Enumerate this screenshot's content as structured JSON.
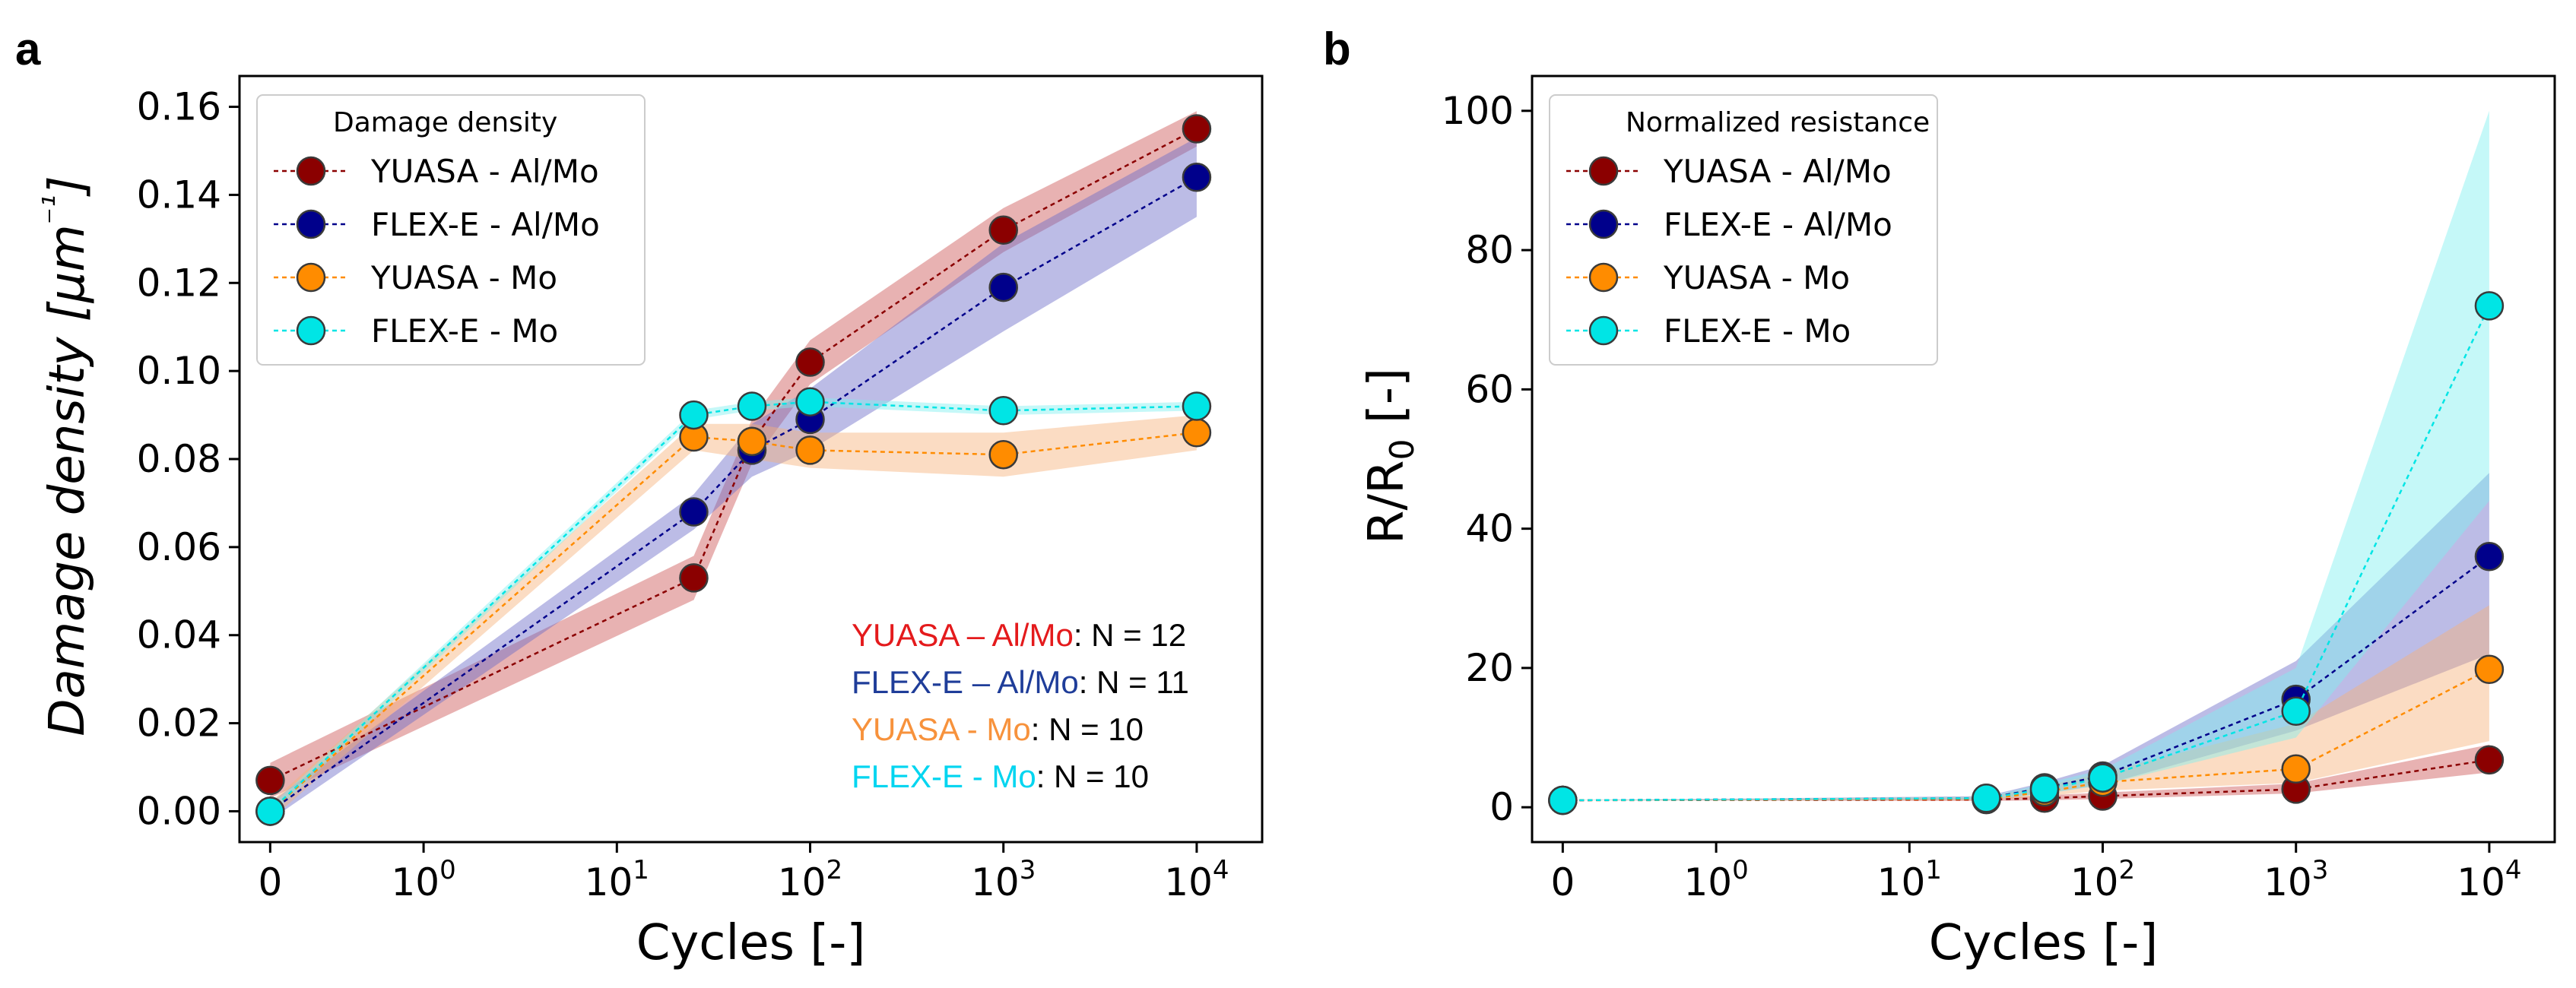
{
  "figure": {
    "panels": [
      {
        "label": "a",
        "legend_title": "Damage density",
        "annotations": [
          {
            "name": "YUASA – Al/Mo",
            "count": ": N = 12",
            "color": "#e41a1c"
          },
          {
            "name": "FLEX-E – Al/Mo",
            "count": ": N = 11",
            "color": "#1f3d99"
          },
          {
            "name": "YUASA - Mo",
            "count": ": N = 10",
            "color": "#f7923c"
          },
          {
            "name": "FLEX-E - Mo",
            "count": ": N = 10",
            "color": "#00d5f0"
          }
        ]
      },
      {
        "label": "b",
        "legend_title": "Normalized resistance",
        "annotations": []
      }
    ]
  },
  "chart_data": [
    {
      "type": "line",
      "title": "",
      "xlabel": "Cycles [-]",
      "ylabel_parts": [
        "Damage density [",
        "μm",
        "⁻¹",
        "]"
      ],
      "xscale": "symlog",
      "x": [
        0,
        25,
        50,
        100,
        1000,
        10000
      ],
      "xticks": [
        {
          "value": 0,
          "base": "0",
          "exp": ""
        },
        {
          "value": 1,
          "base": "10",
          "exp": "0"
        },
        {
          "value": 10,
          "base": "10",
          "exp": "1"
        },
        {
          "value": 100,
          "base": "10",
          "exp": "2"
        },
        {
          "value": 1000,
          "base": "10",
          "exp": "3"
        },
        {
          "value": 10000,
          "base": "10",
          "exp": "4"
        }
      ],
      "yticks": [
        "0.00",
        "0.02",
        "0.04",
        "0.06",
        "0.08",
        "0.10",
        "0.12",
        "0.14",
        "0.16"
      ],
      "ylim": [
        -0.007,
        0.167
      ],
      "legend_position": "upper-left",
      "series": [
        {
          "name": "YUASA - Al/Mo",
          "color": "#8b0000",
          "band": "#cc5555",
          "values": [
            0.007,
            0.053,
            0.084,
            0.102,
            0.132,
            0.155
          ],
          "lower": [
            0.003,
            0.048,
            0.079,
            0.097,
            0.127,
            0.151
          ],
          "upper": [
            0.011,
            0.058,
            0.089,
            0.107,
            0.137,
            0.159
          ]
        },
        {
          "name": "FLEX-E - Al/Mo",
          "color": "#00008b",
          "band": "#6a6ac8",
          "values": [
            0.0,
            0.068,
            0.082,
            0.089,
            0.119,
            0.144
          ],
          "lower": [
            -0.002,
            0.064,
            0.076,
            0.082,
            0.109,
            0.135
          ],
          "upper": [
            0.002,
            0.072,
            0.088,
            0.096,
            0.129,
            0.153
          ]
        },
        {
          "name": "YUASA - Mo",
          "color": "#ff8c00",
          "band": "#f7b27a",
          "values": [
            0.0,
            0.085,
            0.084,
            0.082,
            0.081,
            0.086
          ],
          "lower": [
            -0.002,
            0.082,
            0.08,
            0.078,
            0.076,
            0.082
          ],
          "upper": [
            0.002,
            0.088,
            0.088,
            0.086,
            0.086,
            0.09
          ]
        },
        {
          "name": "FLEX-E - Mo",
          "color": "#00e5e5",
          "band": "#7ff0f0",
          "values": [
            0.0,
            0.09,
            0.092,
            0.093,
            0.091,
            0.092
          ],
          "lower": [
            -0.001,
            0.089,
            0.091,
            0.092,
            0.09,
            0.091
          ],
          "upper": [
            0.001,
            0.091,
            0.093,
            0.094,
            0.092,
            0.093
          ]
        }
      ]
    },
    {
      "type": "line",
      "title": "",
      "xlabel": "Cycles [-]",
      "ylabel_parts": [
        "R/R",
        "0",
        " [-]"
      ],
      "xscale": "symlog",
      "x": [
        0,
        25,
        50,
        100,
        1000,
        10000
      ],
      "xticks": [
        {
          "value": 0,
          "base": "0",
          "exp": ""
        },
        {
          "value": 1,
          "base": "10",
          "exp": "0"
        },
        {
          "value": 10,
          "base": "10",
          "exp": "1"
        },
        {
          "value": 100,
          "base": "10",
          "exp": "2"
        },
        {
          "value": 1000,
          "base": "10",
          "exp": "3"
        },
        {
          "value": 10000,
          "base": "10",
          "exp": "4"
        }
      ],
      "yticks": [
        "0",
        "20",
        "40",
        "60",
        "80",
        "100"
      ],
      "ylim": [
        -5,
        105
      ],
      "legend_position": "upper-left",
      "series": [
        {
          "name": "YUASA - Al/Mo",
          "color": "#8b0000",
          "band": "#cc5555",
          "values": [
            1.0,
            1.1,
            1.3,
            1.6,
            2.6,
            6.8
          ],
          "lower": [
            1.0,
            0.9,
            1.0,
            1.2,
            2.0,
            5.0
          ],
          "upper": [
            1.0,
            1.3,
            1.7,
            2.1,
            3.4,
            9.0
          ]
        },
        {
          "name": "FLEX-E - Al/Mo",
          "color": "#00008b",
          "band": "#6a6ac8",
          "values": [
            1.0,
            1.3,
            2.8,
            4.5,
            15.5,
            36.0
          ],
          "lower": [
            1.0,
            1.1,
            2.0,
            3.2,
            11.0,
            22.0
          ],
          "upper": [
            1.0,
            1.6,
            3.6,
            6.0,
            21.0,
            48.0
          ]
        },
        {
          "name": "YUASA - Mo",
          "color": "#ff8c00",
          "band": "#f7b27a",
          "values": [
            1.0,
            1.2,
            2.2,
            3.6,
            5.5,
            19.8
          ],
          "lower": [
            1.0,
            1.0,
            1.6,
            2.4,
            3.5,
            9.5
          ],
          "upper": [
            1.0,
            1.5,
            3.0,
            5.0,
            12.0,
            29.0
          ]
        },
        {
          "name": "FLEX-E - Mo",
          "color": "#00e5e5",
          "band": "#7ff0f0",
          "values": [
            1.0,
            1.3,
            2.6,
            4.2,
            13.8,
            72.0
          ],
          "lower": [
            1.0,
            1.1,
            1.9,
            3.2,
            10.0,
            44.0
          ],
          "upper": [
            1.0,
            1.5,
            3.4,
            5.4,
            20.0,
            100.0
          ]
        }
      ]
    }
  ]
}
